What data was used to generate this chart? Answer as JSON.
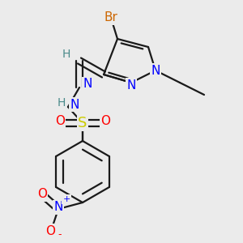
{
  "bg_color": "#ebebeb",
  "bond_color": "#1a1a1a",
  "atoms": {
    "Br": {
      "color": "#cc6600"
    },
    "N": {
      "color": "#0000ff"
    },
    "H": {
      "color": "#4a8a8a"
    },
    "O": {
      "color": "#ff0000"
    },
    "S": {
      "color": "#cccc00"
    }
  },
  "bond_width": 1.6,
  "dbo": 0.012
}
